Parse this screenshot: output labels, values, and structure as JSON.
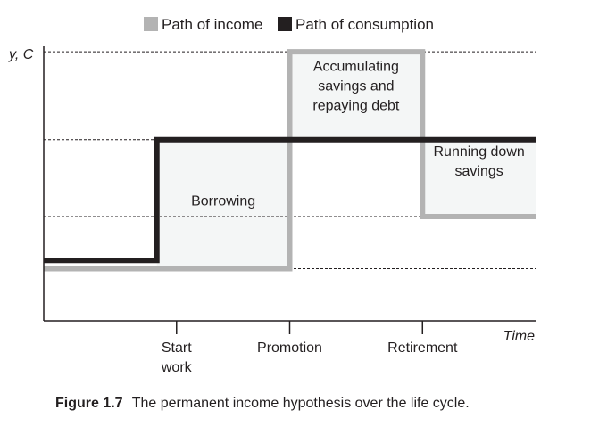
{
  "chart_data": {
    "type": "line",
    "title": "",
    "caption": {
      "label": "Figure 1.7",
      "text": "The permanent income hypothesis over the life cycle."
    },
    "ylabel": "y, C",
    "xlabel": "Time",
    "xlim": [
      0,
      100
    ],
    "ylim": [
      0,
      100
    ],
    "grid": {
      "dashed_levels": [
        19,
        38,
        66,
        98
      ]
    },
    "xticks": [
      {
        "x": 27,
        "label_lines": [
          "Start",
          "work"
        ]
      },
      {
        "x": 50,
        "label_lines": [
          "Promotion"
        ]
      },
      {
        "x": 77,
        "label_lines": [
          "Retirement"
        ]
      }
    ],
    "series": [
      {
        "name": "Path of income",
        "color": "#b3b3b3",
        "x": [
          0,
          27,
          50,
          50,
          77,
          77,
          100
        ],
        "y": [
          19,
          19,
          19,
          98,
          98,
          38,
          38
        ],
        "step": true
      },
      {
        "name": "Path of consumption",
        "color": "#231f20",
        "x": [
          0,
          23,
          23,
          100
        ],
        "y": [
          22,
          22,
          66,
          66
        ],
        "step": true
      }
    ],
    "regions": [
      {
        "name": "Borrowing",
        "x0": 23,
        "x1": 50,
        "y0": 19,
        "y1": 66
      },
      {
        "name": "Accumulating savings",
        "x0": 50,
        "x1": 77,
        "y0": 66,
        "y1": 98
      },
      {
        "name": "Running down savings",
        "x0": 77,
        "x1": 100,
        "y0": 38,
        "y1": 66
      }
    ],
    "annotations": [
      {
        "lines": [
          "Borrowing"
        ],
        "x": 36.5,
        "y": 42
      },
      {
        "lines": [
          "Accumulating",
          "savings and",
          "repaying debt"
        ],
        "x": 63.5,
        "y": 91
      },
      {
        "lines": [
          "Running down",
          "savings"
        ],
        "x": 88.5,
        "y": 60
      }
    ],
    "legend": {
      "placement": "top",
      "entries": [
        "Path of income",
        "Path of consumption"
      ]
    }
  }
}
